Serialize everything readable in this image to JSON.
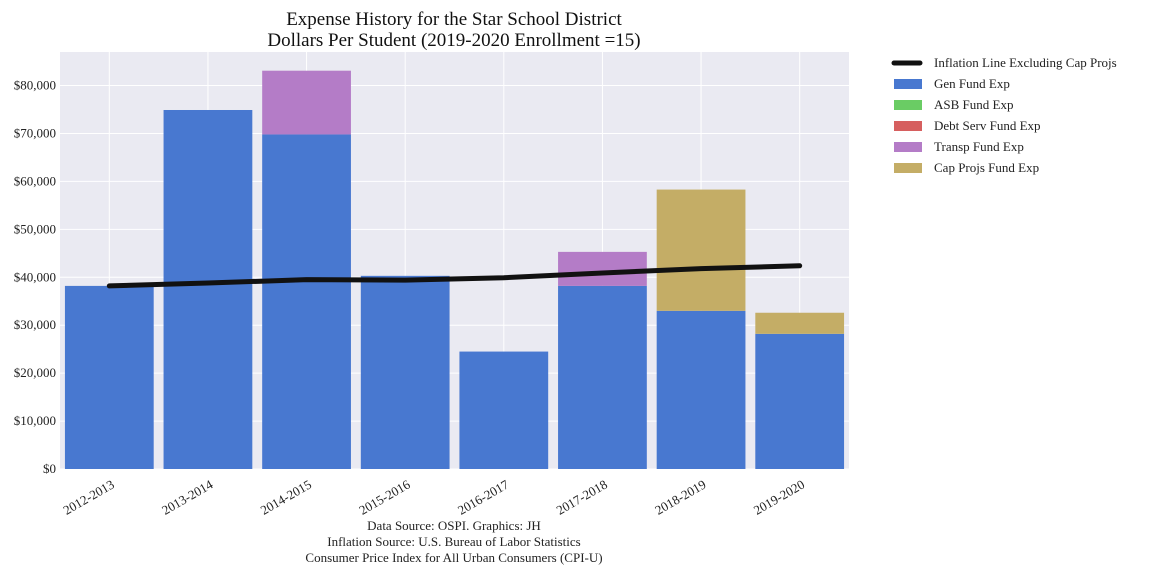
{
  "chart_data": {
    "type": "bar",
    "stacked": true,
    "title": "Expense History for the Star School District",
    "subtitle": "Dollars Per Student (2019-2020 Enrollment =15)",
    "categories": [
      "2012-2013",
      "2013-2014",
      "2014-2015",
      "2015-2016",
      "2016-2017",
      "2017-2018",
      "2018-2019",
      "2019-2020"
    ],
    "ylim": [
      0,
      87000
    ],
    "yticks": [
      0,
      10000,
      20000,
      30000,
      40000,
      50000,
      60000,
      70000,
      80000
    ],
    "ytick_labels": [
      "$0",
      "$10,000",
      "$20,000",
      "$30,000",
      "$40,000",
      "$50,000",
      "$60,000",
      "$70,000",
      "$80,000"
    ],
    "grid": true,
    "legend_position": "outside-right",
    "series": [
      {
        "name": "Gen Fund Exp",
        "color": "#4878d0",
        "values": [
          38200,
          74900,
          69800,
          40300,
          24500,
          38200,
          33000,
          28200
        ]
      },
      {
        "name": "ASB Fund Exp",
        "color": "#6acc64",
        "values": [
          0,
          0,
          0,
          0,
          0,
          0,
          0,
          0
        ]
      },
      {
        "name": "Debt Serv Fund Exp",
        "color": "#d65f5f",
        "values": [
          0,
          0,
          0,
          0,
          0,
          0,
          0,
          0
        ]
      },
      {
        "name": "Transp Fund Exp",
        "color": "#b47cc7",
        "values": [
          0,
          0,
          13300,
          0,
          0,
          7100,
          0,
          0
        ]
      },
      {
        "name": "Cap Projs Fund Exp",
        "color": "#c4ad66",
        "values": [
          0,
          0,
          0,
          0,
          0,
          0,
          25300,
          4400
        ]
      }
    ],
    "line": {
      "name": "Inflation Line Excluding Cap Projs",
      "color": "#111111",
      "values": [
        38200,
        38800,
        39500,
        39400,
        39900,
        40900,
        41800,
        42400
      ]
    }
  },
  "source_notes": [
    "Data Source: OSPI. Graphics: JH",
    "Inflation Source: U.S. Bureau of Labor Statistics",
    "Consumer Price Index for All Urban Consumers (CPI-U)"
  ]
}
